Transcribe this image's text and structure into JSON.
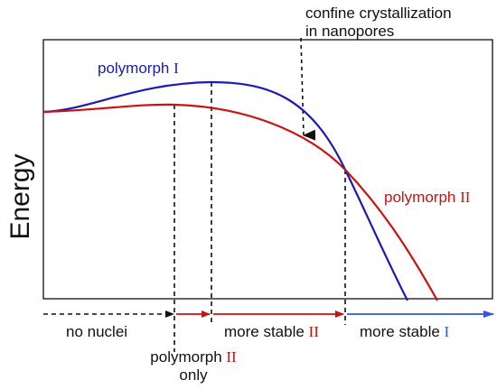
{
  "diagram": {
    "y_axis_label": "Energy",
    "annotation": {
      "line1": "confine crystallization",
      "line2": "in nanopores"
    },
    "curves": [
      {
        "name_prefix": "polymorph ",
        "name_numeral": "I",
        "color": "#1a1ab8"
      },
      {
        "name_prefix": "polymorph ",
        "name_numeral": "II",
        "color": "#cc1111"
      }
    ],
    "regions": {
      "no_nuclei": "no nuclei",
      "polymorph_only_prefix": "polymorph ",
      "polymorph_only_numeral": "II",
      "polymorph_only_line2": "only",
      "more_stable_II_prefix": "more stable ",
      "more_stable_II_numeral": "II",
      "more_stable_I_prefix": "more stable ",
      "more_stable_I_numeral": "I"
    },
    "colors": {
      "axis": "#111111",
      "dashed": "#111111",
      "arrow_black": "#111111",
      "arrow_red": "#cc1111",
      "arrow_blue": "#3355ee"
    }
  }
}
